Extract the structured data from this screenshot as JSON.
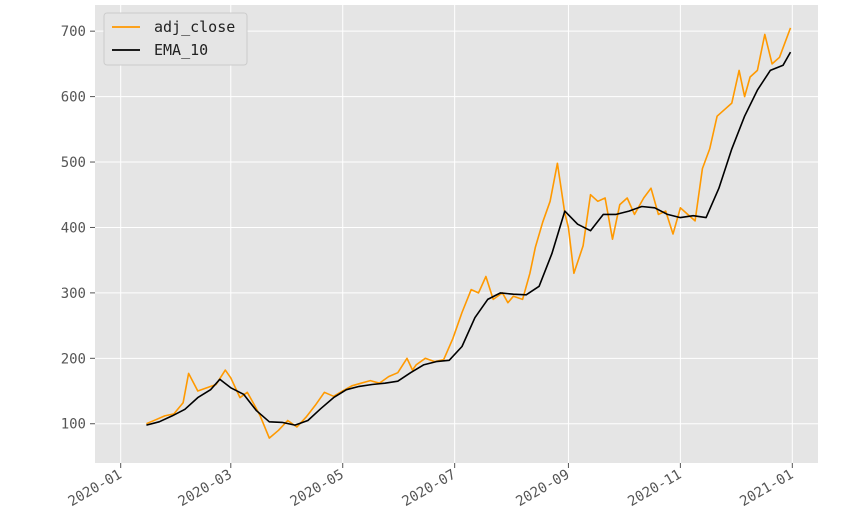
{
  "chart_data": {
    "type": "line",
    "title": "",
    "xlabel": "",
    "ylabel": "",
    "x_range": [
      "2019-12-18",
      "2021-01-15"
    ],
    "y_range": [
      40,
      740
    ],
    "grid": true,
    "legend_position": "top-left",
    "x_ticks": [
      "2020-01",
      "2020-03",
      "2020-05",
      "2020-07",
      "2020-09",
      "2020-11",
      "2021-01"
    ],
    "x_tick_dates": [
      "2020-01-01",
      "2020-03-01",
      "2020-05-01",
      "2020-07-01",
      "2020-09-01",
      "2020-11-01",
      "2021-01-01"
    ],
    "y_ticks": [
      100,
      200,
      300,
      400,
      500,
      600,
      700
    ],
    "series": [
      {
        "name": "adj_close",
        "color": "#ff9900",
        "dates": [
          "2020-01-15",
          "2020-01-20",
          "2020-01-25",
          "2020-01-30",
          "2020-02-04",
          "2020-02-07",
          "2020-02-12",
          "2020-02-17",
          "2020-02-22",
          "2020-02-27",
          "2020-03-01",
          "2020-03-06",
          "2020-03-10",
          "2020-03-14",
          "2020-03-17",
          "2020-03-22",
          "2020-03-27",
          "2020-04-01",
          "2020-04-06",
          "2020-04-11",
          "2020-04-16",
          "2020-04-21",
          "2020-04-26",
          "2020-05-01",
          "2020-05-06",
          "2020-05-11",
          "2020-05-16",
          "2020-05-21",
          "2020-05-26",
          "2020-05-31",
          "2020-06-05",
          "2020-06-08",
          "2020-06-10",
          "2020-06-15",
          "2020-06-20",
          "2020-06-25",
          "2020-06-30",
          "2020-07-05",
          "2020-07-10",
          "2020-07-14",
          "2020-07-18",
          "2020-07-22",
          "2020-07-27",
          "2020-07-30",
          "2020-08-02",
          "2020-08-07",
          "2020-08-11",
          "2020-08-14",
          "2020-08-18",
          "2020-08-22",
          "2020-08-26",
          "2020-08-30",
          "2020-09-01",
          "2020-09-04",
          "2020-09-09",
          "2020-09-13",
          "2020-09-17",
          "2020-09-21",
          "2020-09-25",
          "2020-09-29",
          "2020-10-03",
          "2020-10-07",
          "2020-10-12",
          "2020-10-16",
          "2020-10-20",
          "2020-10-24",
          "2020-10-28",
          "2020-11-01",
          "2020-11-05",
          "2020-11-09",
          "2020-11-13",
          "2020-11-17",
          "2020-11-21",
          "2020-11-25",
          "2020-11-29",
          "2020-12-03",
          "2020-12-06",
          "2020-12-09",
          "2020-12-13",
          "2020-12-17",
          "2020-12-21",
          "2020-12-25",
          "2020-12-31"
        ],
        "values": [
          100,
          106,
          112,
          115,
          132,
          177,
          150,
          155,
          160,
          182,
          170,
          140,
          148,
          128,
          112,
          78,
          90,
          105,
          95,
          110,
          128,
          148,
          142,
          150,
          158,
          162,
          166,
          162,
          172,
          178,
          200,
          182,
          190,
          200,
          195,
          198,
          230,
          270,
          305,
          300,
          325,
          290,
          300,
          285,
          295,
          290,
          330,
          370,
          408,
          440,
          498,
          422,
          400,
          330,
          372,
          450,
          440,
          445,
          382,
          435,
          445,
          420,
          445,
          460,
          420,
          425,
          390,
          430,
          420,
          410,
          490,
          520,
          570,
          580,
          590,
          640,
          600,
          630,
          640,
          695,
          650,
          660,
          705
        ]
      },
      {
        "name": "EMA_10",
        "color": "#000000",
        "dates": [
          "2020-01-15",
          "2020-01-22",
          "2020-01-29",
          "2020-02-05",
          "2020-02-12",
          "2020-02-19",
          "2020-02-24",
          "2020-03-01",
          "2020-03-08",
          "2020-03-15",
          "2020-03-22",
          "2020-03-29",
          "2020-04-05",
          "2020-04-12",
          "2020-04-19",
          "2020-04-26",
          "2020-05-03",
          "2020-05-10",
          "2020-05-17",
          "2020-05-24",
          "2020-05-31",
          "2020-06-07",
          "2020-06-14",
          "2020-06-21",
          "2020-06-28",
          "2020-07-05",
          "2020-07-12",
          "2020-07-19",
          "2020-07-26",
          "2020-08-02",
          "2020-08-09",
          "2020-08-16",
          "2020-08-23",
          "2020-08-30",
          "2020-09-06",
          "2020-09-13",
          "2020-09-20",
          "2020-09-27",
          "2020-10-04",
          "2020-10-11",
          "2020-10-18",
          "2020-10-25",
          "2020-11-01",
          "2020-11-08",
          "2020-11-15",
          "2020-11-22",
          "2020-11-29",
          "2020-12-06",
          "2020-12-13",
          "2020-12-20",
          "2020-12-27",
          "2020-12-31"
        ],
        "values": [
          98,
          103,
          112,
          122,
          140,
          152,
          168,
          155,
          145,
          120,
          103,
          102,
          98,
          105,
          123,
          140,
          152,
          157,
          160,
          162,
          165,
          178,
          190,
          195,
          197,
          218,
          262,
          290,
          300,
          298,
          297,
          310,
          360,
          425,
          405,
          395,
          420,
          420,
          425,
          432,
          430,
          420,
          415,
          418,
          415,
          460,
          520,
          570,
          610,
          640,
          648,
          668
        ]
      }
    ]
  }
}
